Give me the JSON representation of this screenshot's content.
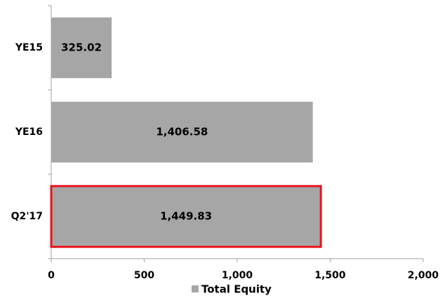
{
  "chart_data": {
    "type": "barh",
    "categories": [
      "YE15",
      "YE16",
      "Q2'17"
    ],
    "series": [
      {
        "name": "Total Equity",
        "color": "#a6a6a6",
        "values": [
          325.02,
          1406.58,
          1449.83
        ],
        "value_labels": [
          "325.02",
          "1,406.58",
          "1,449.83"
        ],
        "edgecolors": [
          null,
          null,
          "#e8141b"
        ]
      }
    ],
    "xlim": [
      0,
      2000
    ],
    "xticks": [
      0,
      500,
      {
        "value": 1000,
        "label": "1,000"
      },
      {
        "value": 1500,
        "label": "1,500"
      },
      {
        "value": 2000,
        "label": "2,000"
      }
    ],
    "legend": "bottom",
    "grid": false
  }
}
